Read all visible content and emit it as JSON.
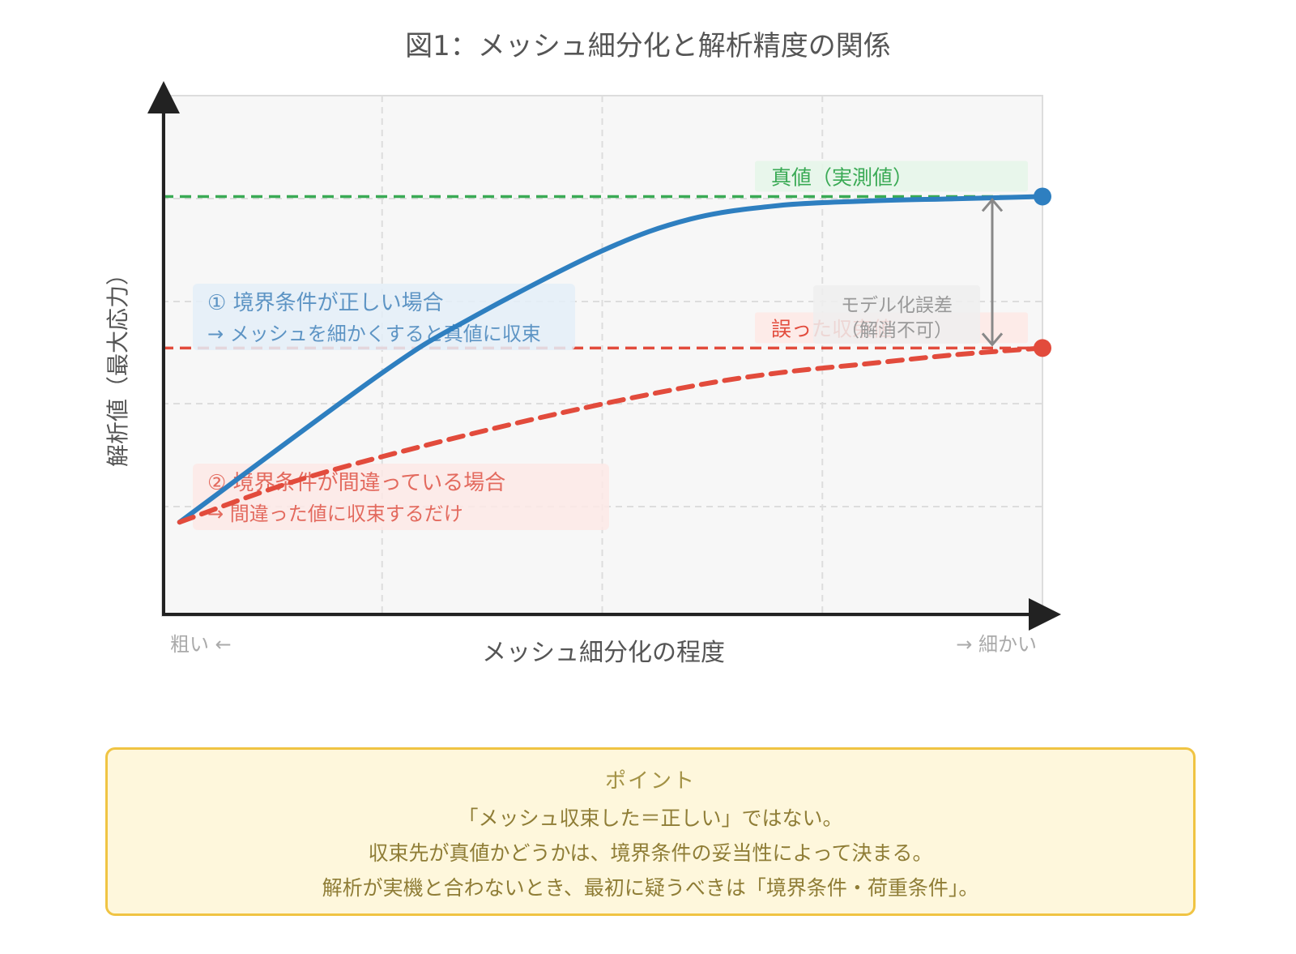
{
  "chart_data": {
    "type": "line",
    "title": "図1：メッシュ細分化と解析精度の関係",
    "xlabel": "メッシュ細分化の程度",
    "ylabel": "解析値（最大応力）",
    "x_tick_left": "粗い ←",
    "x_tick_right": "→ 細かい",
    "xlim": [
      0,
      1
    ],
    "ylim": [
      0,
      1
    ],
    "grid": true,
    "series": [
      {
        "key": "correct",
        "color": "#2e7fc0",
        "style": "solid",
        "x": [
          0.02,
          0.25,
          0.35,
          0.5,
          0.6,
          0.7,
          0.8,
          0.9,
          1.0
        ],
        "y": [
          0.1,
          0.43,
          0.55,
          0.7,
          0.77,
          0.8,
          0.81,
          0.815,
          0.82
        ]
      },
      {
        "key": "wrong",
        "color": "#e24b3c",
        "style": "dashed",
        "x": [
          0.02,
          0.15,
          0.3,
          0.45,
          0.6,
          0.7,
          0.8,
          0.9,
          1.0
        ],
        "y": [
          0.1,
          0.19,
          0.27,
          0.34,
          0.4,
          0.43,
          0.45,
          0.47,
          0.485
        ]
      }
    ],
    "reference_lines": [
      {
        "key": "true_value",
        "y": 0.82,
        "color": "#3aaa55",
        "label": "真値（実測値）"
      },
      {
        "key": "wrong_converged",
        "y": 0.485,
        "color": "#e24b3c",
        "label": "誤った収束値"
      }
    ],
    "annotations": {
      "error_label": [
        "モデル化誤差",
        "（解消不可）"
      ],
      "case1": [
        "① 境界条件が正しい場合",
        "→ メッシュを細かくすると真値に収束"
      ],
      "case2": [
        "② 境界条件が間違っている場合",
        "→ 間違った値に収束するだけ"
      ]
    },
    "colors": {
      "correct": "#2e7fc0",
      "wrong": "#e24b3c",
      "true_value": "#3aaa55",
      "error_arrow": "#888888"
    }
  },
  "point_box": {
    "title": "ポイント",
    "lines": [
      "「メッシュ収束した＝正しい」ではない。",
      "収束先が真値かどうかは、境界条件の妥当性によって決まる。",
      "解析が実機と合わないとき、最初に疑うべきは「境界条件・荷重条件」。"
    ]
  }
}
